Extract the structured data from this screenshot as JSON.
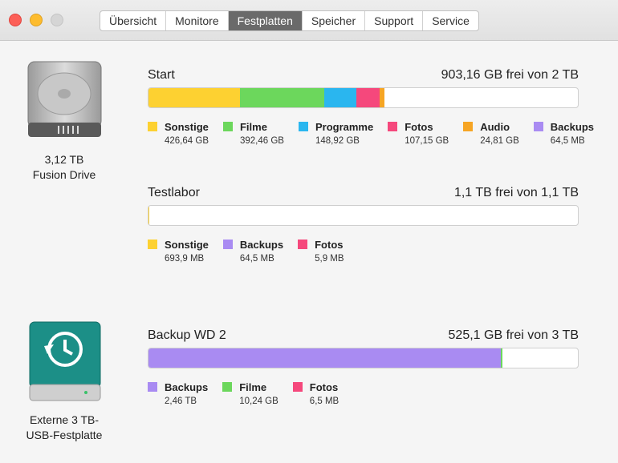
{
  "window": {
    "tabs": [
      "Übersicht",
      "Monitore",
      "Festplatten",
      "Speicher",
      "Support",
      "Service"
    ],
    "selected_tab": 2
  },
  "drives": [
    {
      "label_lines": [
        "3,12 TB",
        "Fusion Drive"
      ],
      "volumes": [
        {
          "name": "Start",
          "info": "903,16 GB frei von 2 TB",
          "capacity": 2000,
          "segments": [
            {
              "name": "Sonstige",
              "color": "#fdd131",
              "value": 426.64,
              "value_label": "426,64 GB"
            },
            {
              "name": "Filme",
              "color": "#6cd75c",
              "value": 392.46,
              "value_label": "392,46 GB"
            },
            {
              "name": "Programme",
              "color": "#2ab6ef",
              "value": 148.92,
              "value_label": "148,92 GB"
            },
            {
              "name": "Fotos",
              "color": "#f5487c",
              "value": 107.15,
              "value_label": "107,15 GB"
            },
            {
              "name": "Audio",
              "color": "#f6a524",
              "value": 24.81,
              "value_label": "24,81 GB"
            },
            {
              "name": "Backups",
              "color": "#a98bf2",
              "value": 0.0645,
              "value_label": "64,5 MB"
            }
          ]
        },
        {
          "name": "Testlabor",
          "info": "1,1 TB frei von 1,1 TB",
          "capacity": 1100,
          "segments": [
            {
              "name": "Sonstige",
              "color": "#fdd131",
              "value": 0.6939,
              "value_label": "693,9 MB"
            },
            {
              "name": "Backups",
              "color": "#a98bf2",
              "value": 0.0645,
              "value_label": "64,5 MB"
            },
            {
              "name": "Fotos",
              "color": "#f5487c",
              "value": 0.0059,
              "value_label": "5,9 MB"
            }
          ]
        }
      ]
    },
    {
      "label_lines": [
        "Externe 3 TB-",
        "USB-Festplatte"
      ],
      "volumes": [
        {
          "name": "Backup WD 2",
          "info": "525,1 GB frei von 3 TB",
          "capacity": 3000,
          "segments": [
            {
              "name": "Backups",
              "color": "#a98bf2",
              "value": 2460,
              "value_label": "2,46 TB"
            },
            {
              "name": "Filme",
              "color": "#6cd75c",
              "value": 10.24,
              "value_label": "10,24 GB"
            },
            {
              "name": "Fotos",
              "color": "#f5487c",
              "value": 0.0065,
              "value_label": "6,5 MB"
            }
          ]
        }
      ]
    }
  ]
}
